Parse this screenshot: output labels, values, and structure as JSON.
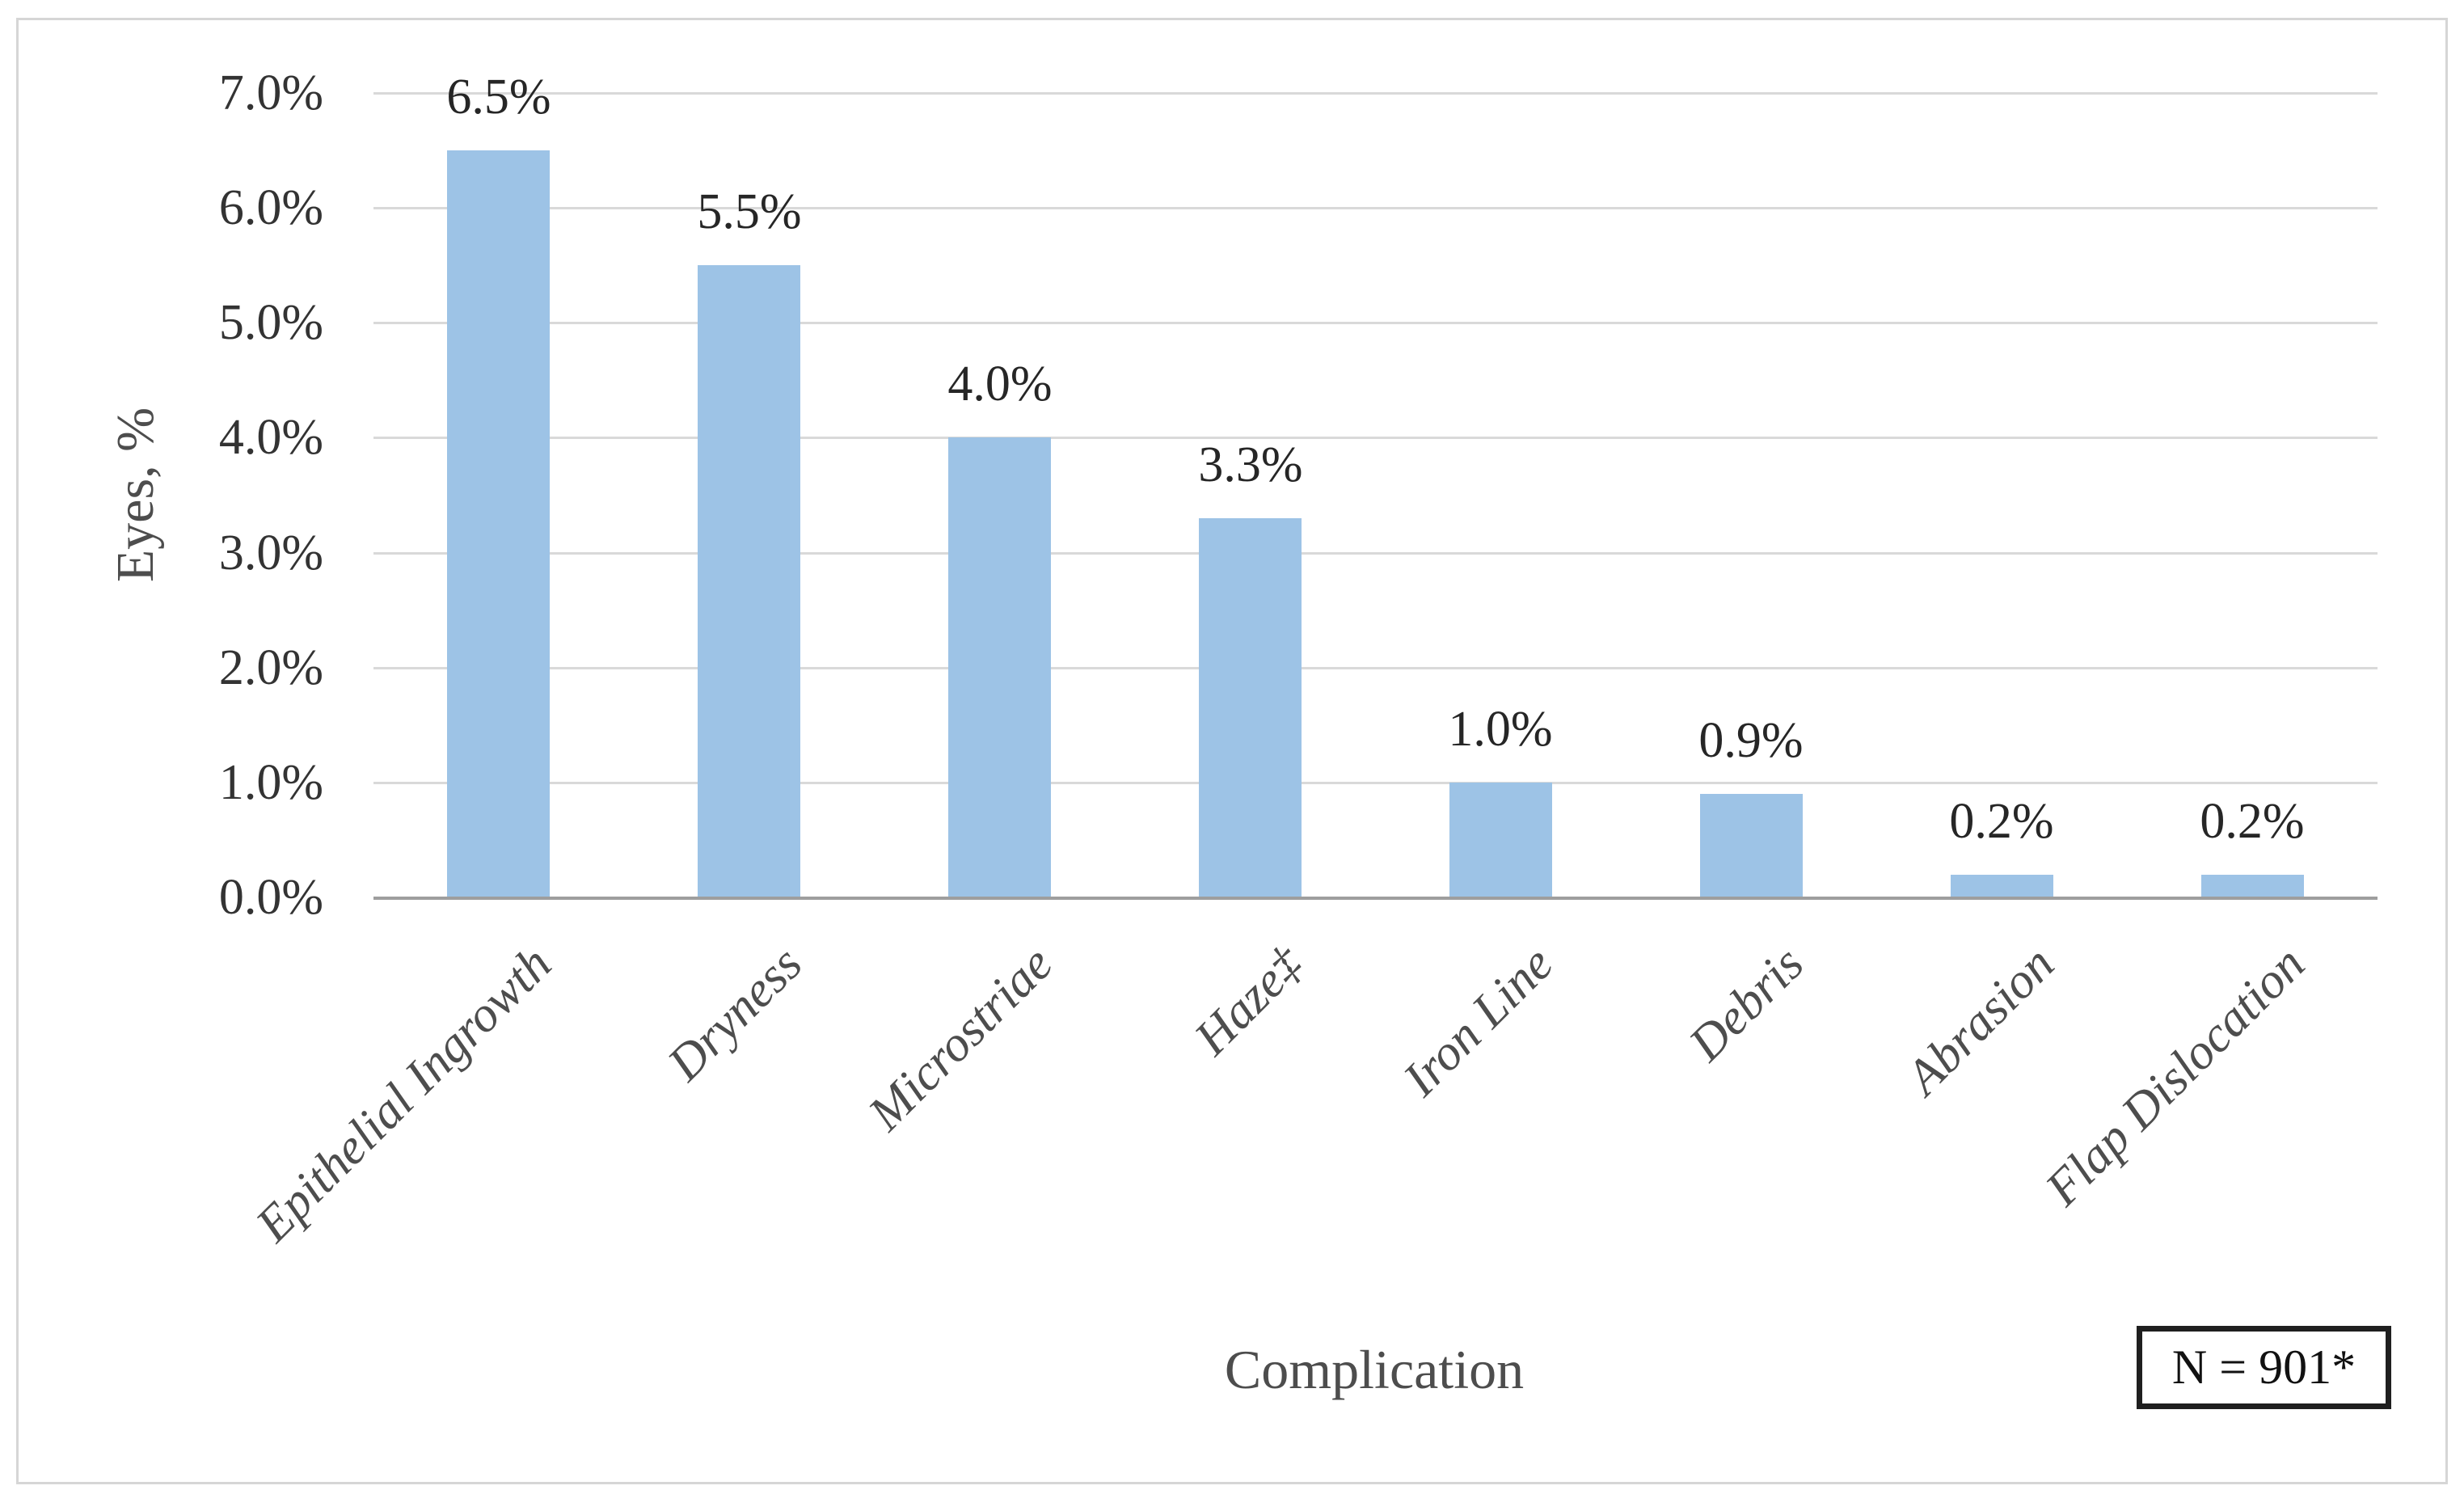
{
  "figure": {
    "background": "#ffffff",
    "border_color": "#d6d6d6"
  },
  "chart_data": {
    "type": "bar",
    "title": "",
    "categories": [
      "Epithelial Ingrowth",
      "Dryness",
      "Microstriae",
      "Haze‡",
      "Iron Line",
      "Debris",
      "Abrasion",
      "Flap Dislocation"
    ],
    "values": [
      6.5,
      5.5,
      4.0,
      3.3,
      1.0,
      0.9,
      0.2,
      0.2
    ],
    "bar_labels": [
      "6.5%",
      "5.5%",
      "4.0%",
      "3.3%",
      "1.0%",
      "0.9%",
      "0.2%",
      "0.2%"
    ],
    "xlabel": "Complication",
    "ylabel": "Eyes, %",
    "y_ticks": [
      "0.0%",
      "1.0%",
      "2.0%",
      "3.0%",
      "4.0%",
      "5.0%",
      "6.0%",
      "7.0%"
    ],
    "ylim": [
      0,
      7
    ],
    "grid": true,
    "legend": "none",
    "annotation": "N = 901*",
    "colors": {
      "bar": "#9DC3E6",
      "gridline": "#D9D9D9",
      "axis_line": "#9E9E9E",
      "label_text": "#262626",
      "category_text": "#4D4D4D",
      "annotation_border": "#1F1F1F"
    }
  }
}
